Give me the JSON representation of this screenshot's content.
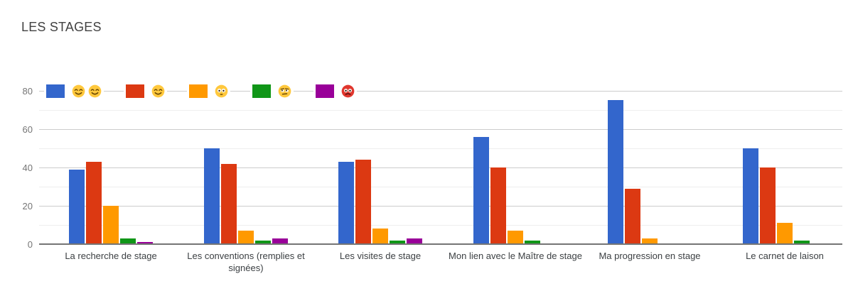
{
  "title": "LES STAGES",
  "chart_data": {
    "type": "bar",
    "title": "LES STAGES",
    "categories": [
      "La recherche de stage",
      "Les conventions (remplies et signées)",
      "Les visites de stage",
      "Mon lien avec le Maître de stage",
      "Ma progression en stage",
      "Le carnet de laison"
    ],
    "series": [
      {
        "name": "😊😊",
        "emoji": [
          "smiling-face",
          "smiling-face"
        ],
        "color": "#3366CC",
        "values": [
          39,
          50,
          43,
          56,
          75,
          50
        ]
      },
      {
        "name": "😊",
        "emoji": [
          "smiling-face"
        ],
        "color": "#DC3912",
        "values": [
          43,
          42,
          44,
          40,
          29,
          40
        ]
      },
      {
        "name": "😳",
        "emoji": [
          "flushed-face"
        ],
        "color": "#FF9900",
        "values": [
          20,
          7,
          8,
          7,
          3,
          11
        ]
      },
      {
        "name": "😒",
        "emoji": [
          "unamused-face"
        ],
        "color": "#109618",
        "values": [
          3,
          2,
          2,
          2,
          0,
          2
        ]
      },
      {
        "name": "😡",
        "emoji": [
          "angry-face"
        ],
        "color": "#990099",
        "values": [
          1,
          3,
          3,
          0,
          0,
          0
        ]
      }
    ],
    "xlabel": "",
    "ylabel": "",
    "ylim": [
      0,
      80
    ],
    "yticks": [
      0,
      20,
      40,
      60,
      80
    ],
    "minor_gridlines": [
      10,
      30,
      50,
      70
    ],
    "grid": true,
    "legend_position": "top-left-inside"
  }
}
